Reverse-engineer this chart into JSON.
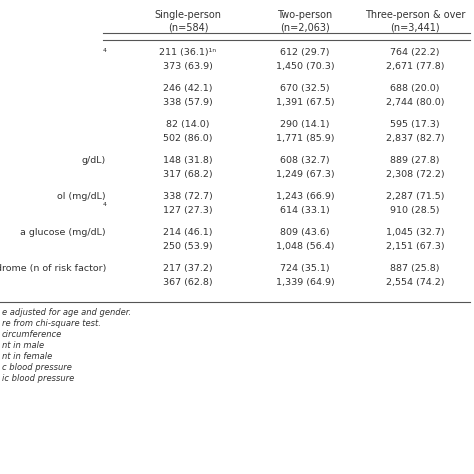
{
  "col_headers": [
    [
      "Single-person",
      "Two-person",
      "Two-person",
      "Three-person & over"
    ],
    [
      "(n=584)",
      "(n=2,063)",
      "(n=2,063)",
      "(n=3,441)"
    ]
  ],
  "col_header_labels": [
    "Single-person",
    "Two-person",
    "Three-person & over"
  ],
  "col_header_sub": [
    "(n=584)",
    "(n=2,063)",
    "(n=3,441)"
  ],
  "sections": [
    {
      "left_label": "⁴",
      "data_rows": [
        [
          "211 (36.1)¹ⁿ",
          "612 (29.7)",
          "764 (22.2)"
        ],
        [
          "373 (63.9)",
          "1,450 (70.3)",
          "2,671 (77.8)"
        ]
      ]
    },
    {
      "left_label": "",
      "data_rows": [
        [
          "246 (42.1)",
          "670 (32.5)",
          "688 (20.0)"
        ],
        [
          "338 (57.9)",
          "1,391 (67.5)",
          "2,744 (80.0)"
        ]
      ]
    },
    {
      "left_label": "",
      "data_rows": [
        [
          "82 (14.0)",
          "290 (14.1)",
          "595 (17.3)"
        ],
        [
          "502 (86.0)",
          "1,771 (85.9)",
          "2,837 (82.7)"
        ]
      ]
    },
    {
      "left_label": "g/dL)",
      "data_rows": [
        [
          "148 (31.8)",
          "608 (32.7)",
          "889 (27.8)"
        ],
        [
          "317 (68.2)",
          "1,249 (67.3)",
          "2,308 (72.2)"
        ]
      ]
    },
    {
      "left_label": "ol (mg/dL)\n⁴",
      "data_rows": [
        [
          "338 (72.7)",
          "1,243 (66.9)",
          "2,287 (71.5)"
        ],
        [
          "127 (27.3)",
          "614 (33.1)",
          "910 (28.5)"
        ]
      ]
    },
    {
      "left_label": "a glucose (mg/dL)",
      "data_rows": [
        [
          "214 (46.1)",
          "809 (43.6)",
          "1,045 (32.7)"
        ],
        [
          "250 (53.9)",
          "1,048 (56.4)",
          "2,151 (67.3)"
        ]
      ]
    },
    {
      "left_label": "drome (n of risk factor)",
      "data_rows": [
        [
          "217 (37.2)",
          "724 (35.1)",
          "887 (25.8)"
        ],
        [
          "367 (62.8)",
          "1,339 (64.9)",
          "2,554 (74.2)"
        ]
      ]
    }
  ],
  "footnotes": [
    "e adjusted for age and gender.",
    "re from chi-square test.",
    "circumference",
    "nt in male",
    "nt in female",
    "c blood pressure",
    "ic blood pressure"
  ],
  "bg_color": "#ffffff",
  "text_color": "#333333",
  "line_color": "#555555",
  "fs_header": 7.0,
  "fs_data": 6.8,
  "fs_footnote": 6.0
}
